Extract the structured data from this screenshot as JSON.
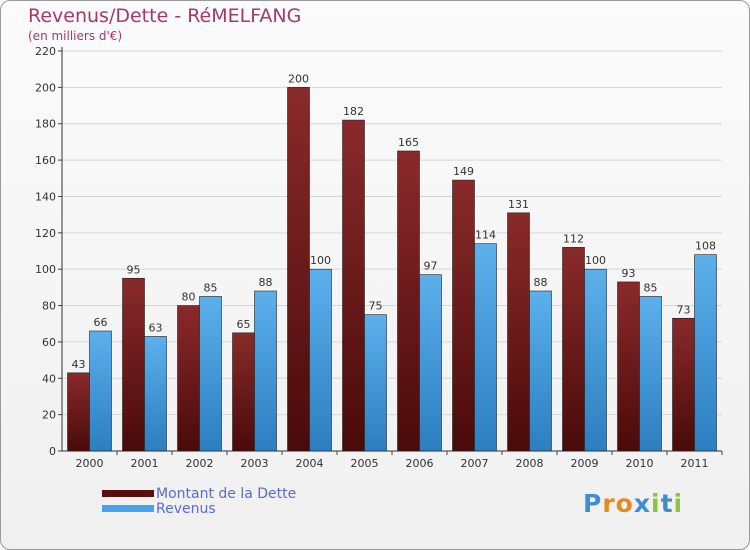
{
  "title": "Revenus/Dette - RéMELFANG",
  "subtitle": "(en milliers d'€)",
  "colors": {
    "title": "#a8376a",
    "debt_top": "#8a2a2a",
    "debt_bottom": "#4a0a0a",
    "revenue_top": "#5cb0ec",
    "revenue_bottom": "#2c7ec0",
    "legend_text": "#5a6ad8"
  },
  "legend": [
    {
      "label": "Montant de la Dette",
      "color": "#5a0f0f"
    },
    {
      "label": "Revenus",
      "color": "#4aa3e6"
    }
  ],
  "logo": {
    "letters": [
      "P",
      "r",
      "o",
      "x",
      "i",
      "t",
      "i"
    ],
    "colors": [
      "#3d8fd1",
      "#e58a1f",
      "#e58a1f",
      "#3d8fd1",
      "#8bc53f",
      "#3d8fd1",
      "#8bc53f"
    ]
  },
  "chart_data": {
    "type": "bar",
    "title": "Revenus/Dette - RéMELFANG",
    "ylabel": "(en milliers d'€)",
    "xlabel": "",
    "ylim": [
      0,
      220
    ],
    "yticks": [
      0,
      20,
      40,
      60,
      80,
      100,
      120,
      140,
      160,
      180,
      200,
      220
    ],
    "grid": true,
    "legend_position": "bottom-left",
    "categories": [
      "2000",
      "2001",
      "2002",
      "2003",
      "2004",
      "2005",
      "2006",
      "2007",
      "2008",
      "2009",
      "2010",
      "2011"
    ],
    "series": [
      {
        "name": "Montant de la Dette",
        "values": [
          43,
          95,
          80,
          65,
          200,
          182,
          165,
          149,
          131,
          112,
          93,
          73
        ]
      },
      {
        "name": "Revenus",
        "values": [
          66,
          63,
          85,
          88,
          100,
          75,
          97,
          114,
          88,
          100,
          85,
          108
        ]
      }
    ]
  }
}
